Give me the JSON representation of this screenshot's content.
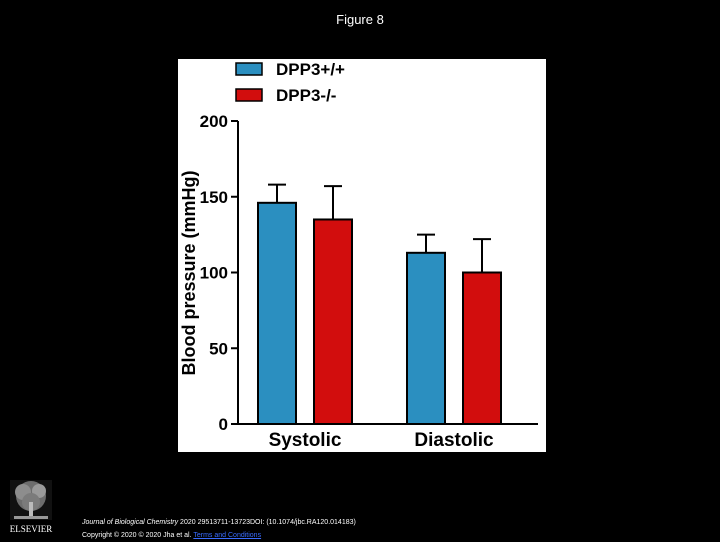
{
  "slide": {
    "title": "Figure 8"
  },
  "footer": {
    "journal": "Journal of Biological Chemistry",
    "citation": " 2020 29513711-13723DOI: (10.1074/jbc.RA120.014183)",
    "copyright": "Copyright © 2020 © 2020 Jha et al. ",
    "license_link": "Terms and Conditions"
  },
  "logo": {
    "text": "ELSEVIER"
  },
  "colors": {
    "series1": "#2b8fc0",
    "series2": "#d20d0d",
    "background": "#000000",
    "panel": "#ffffff"
  },
  "chart_data": {
    "type": "bar",
    "categories": [
      "Systolic",
      "Diastolic"
    ],
    "series": [
      {
        "name": "DPP3+/+",
        "values": [
          146,
          113
        ],
        "error": [
          12,
          12
        ],
        "color": "#2b8fc0"
      },
      {
        "name": "DPP3-/-",
        "values": [
          135,
          100
        ],
        "error": [
          22,
          22
        ],
        "color": "#d20d0d"
      }
    ],
    "ylabel": "Blood pressure (mmHg)",
    "xlabel": "",
    "ylim": [
      0,
      200
    ],
    "yticks": [
      0,
      50,
      100,
      150,
      200
    ],
    "grid": false,
    "legend": "top"
  }
}
